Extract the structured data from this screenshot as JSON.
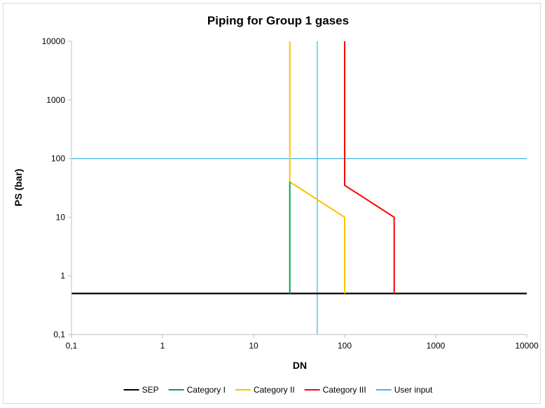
{
  "chart_data": {
    "type": "line",
    "title": "Piping for Group 1 gases",
    "xlabel": "DN",
    "ylabel": "PS (bar)",
    "x_scale": "log",
    "y_scale": "log",
    "xlim": [
      0.1,
      10000
    ],
    "ylim": [
      0.1,
      10000
    ],
    "x_tick_values": [
      0.1,
      1,
      10,
      100,
      1000,
      10000
    ],
    "x_tick_labels": [
      "0,1",
      "1",
      "10",
      "100",
      "1000",
      "10000"
    ],
    "y_tick_values": [
      0.1,
      1,
      10,
      100,
      1000,
      10000
    ],
    "y_tick_labels": [
      "0,1",
      "1",
      "10",
      "100",
      "1000",
      "10000"
    ],
    "grid": false,
    "legend_position": "bottom",
    "series": [
      {
        "name": "SEP",
        "color": "#000000",
        "points": [
          [
            0.1,
            0.5
          ],
          [
            10000,
            0.5
          ]
        ]
      },
      {
        "name": "Category I",
        "color": "#00a651",
        "points": [
          [
            25,
            0.5
          ],
          [
            25,
            40
          ]
        ]
      },
      {
        "name": "Category II",
        "color": "#ffc000",
        "points": [
          [
            25,
            10000
          ],
          [
            25,
            40
          ],
          [
            100,
            10
          ],
          [
            100,
            0.5
          ]
        ]
      },
      {
        "name": "Category III",
        "color": "#ff0000",
        "points": [
          [
            100,
            10000
          ],
          [
            100,
            35
          ],
          [
            350,
            10
          ],
          [
            350,
            0.5
          ]
        ]
      },
      {
        "name": "User input",
        "color": "#3fb8e6",
        "points": [
          [
            50,
            0.1
          ],
          [
            50,
            10000
          ]
        ],
        "extra_segments": [
          [
            [
              0.1,
              100
            ],
            [
              10000,
              100
            ]
          ]
        ]
      }
    ]
  }
}
